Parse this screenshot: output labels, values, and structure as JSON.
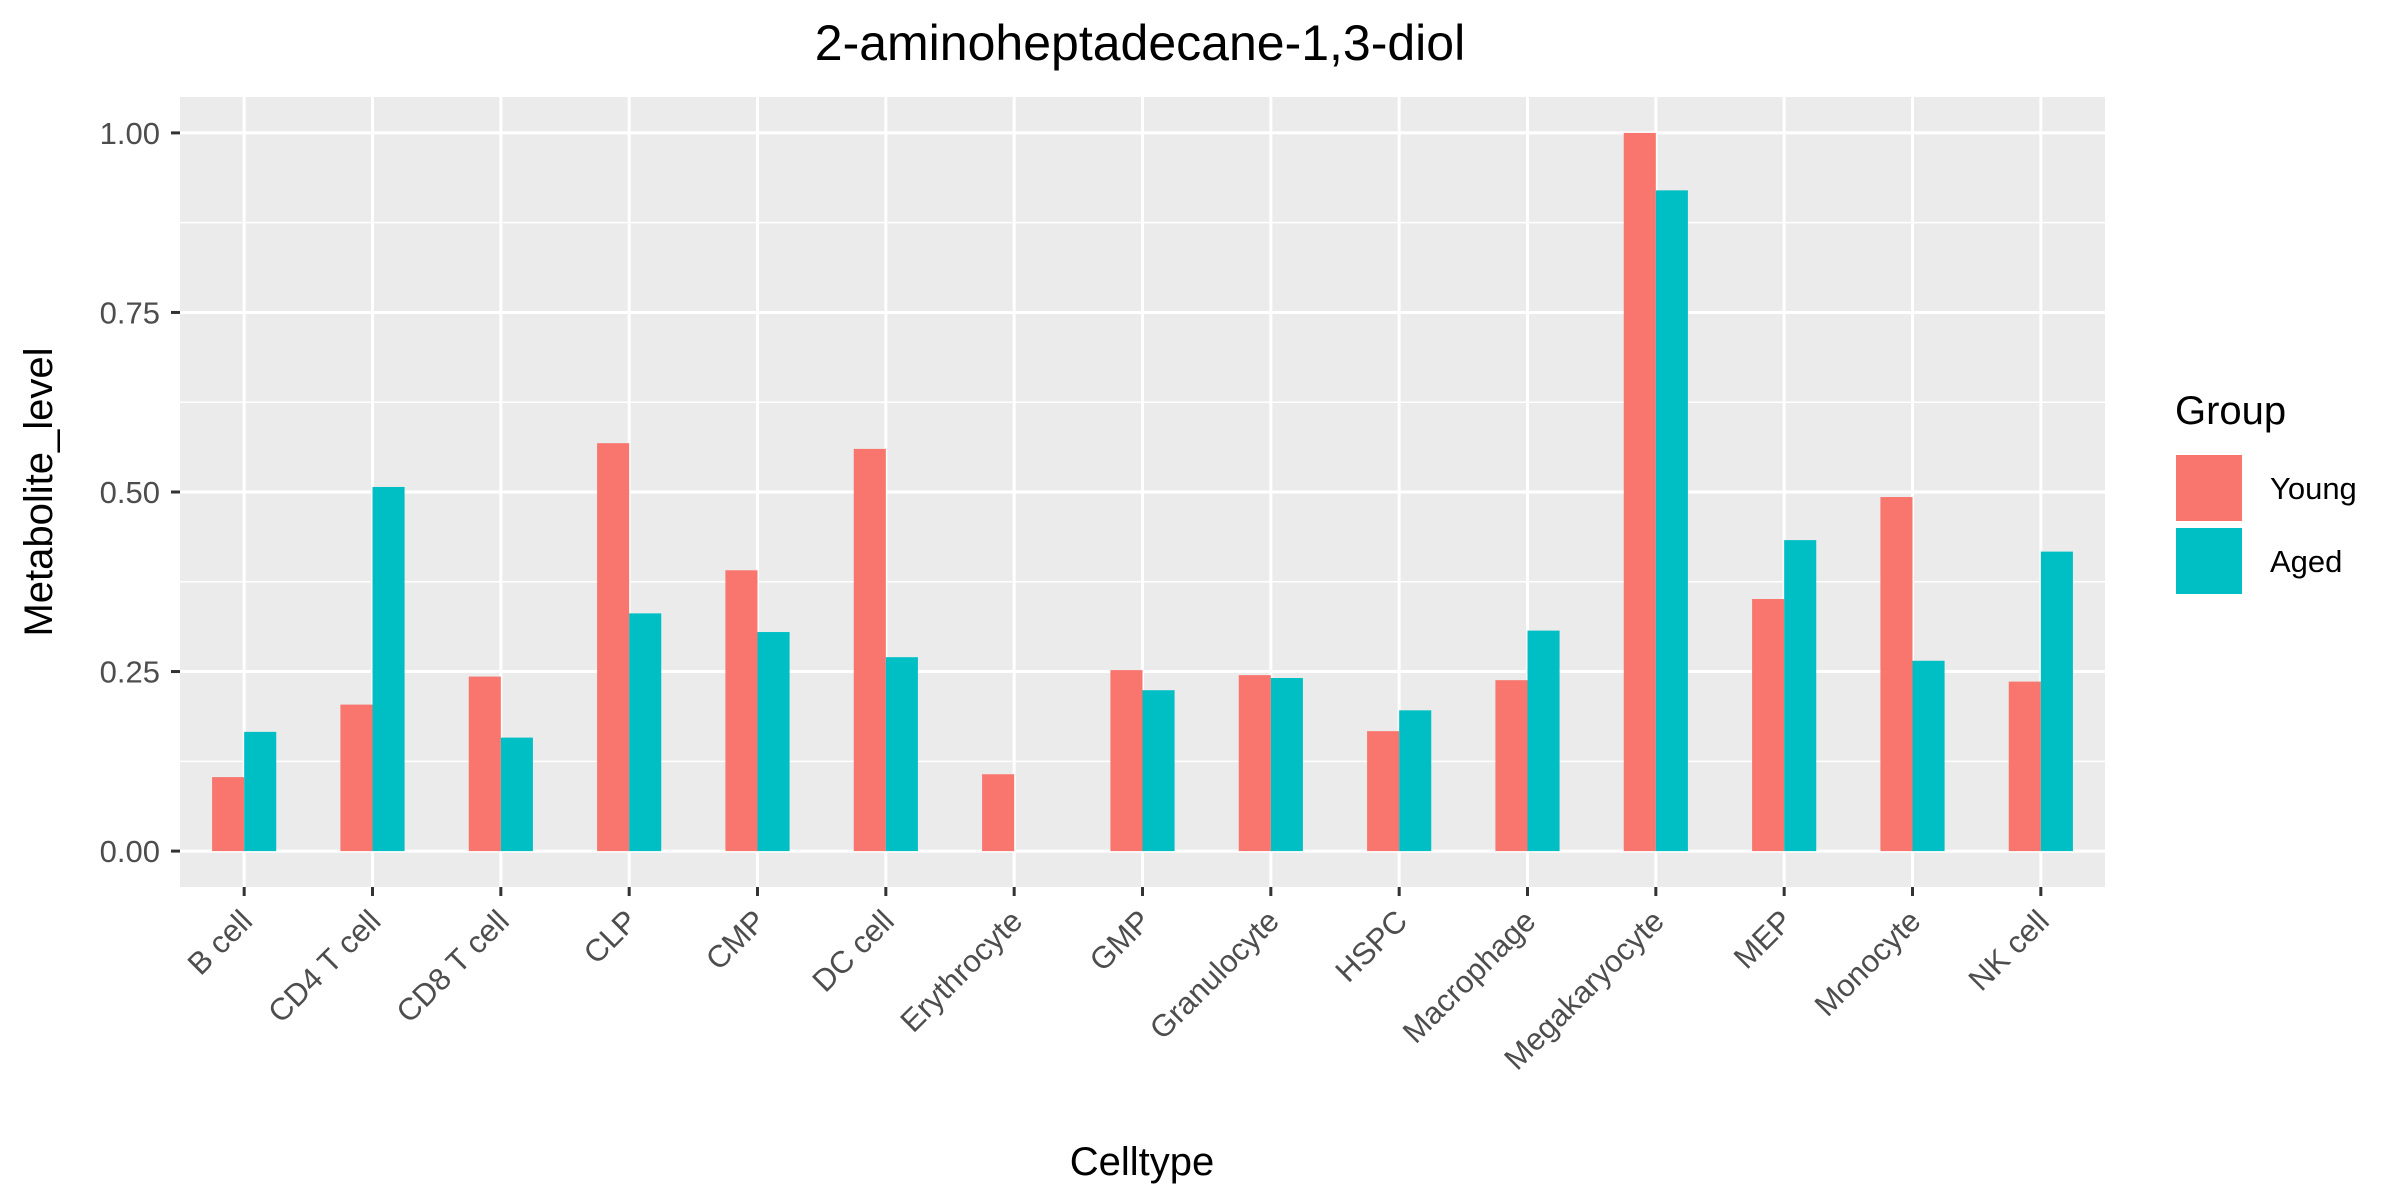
{
  "chart_data": {
    "type": "bar",
    "title": "2-aminoheptadecane-1,3-diol",
    "xlabel": "Celltype",
    "ylabel": "Metabolite_level",
    "ylim": [
      -0.05,
      1.05
    ],
    "yticks": [
      "0.00",
      "0.25",
      "0.50",
      "0.75",
      "1.00"
    ],
    "grid": true,
    "legend": {
      "title": "Group",
      "position": "right"
    },
    "categories": [
      "B cell",
      "CD4 T cell",
      "CD8 T cell",
      "CLP",
      "CMP",
      "DC cell",
      "Erythrocyte",
      "GMP",
      "Granulocyte",
      "HSPC",
      "Macrophage",
      "Megakaryocyte",
      "MEP",
      "Monocyte",
      "NK cell"
    ],
    "series": [
      {
        "name": "Young",
        "color": "#F8766D",
        "values": [
          0.103,
          0.204,
          0.243,
          0.568,
          0.391,
          0.56,
          0.107,
          0.252,
          0.245,
          0.167,
          0.238,
          1.0,
          0.351,
          0.493,
          0.236
        ]
      },
      {
        "name": "Aged",
        "color": "#00BFC4",
        "values": [
          0.166,
          0.507,
          0.158,
          0.331,
          0.305,
          0.27,
          0.0,
          0.224,
          0.241,
          0.196,
          0.307,
          0.92,
          0.433,
          0.265,
          0.417
        ]
      }
    ]
  }
}
